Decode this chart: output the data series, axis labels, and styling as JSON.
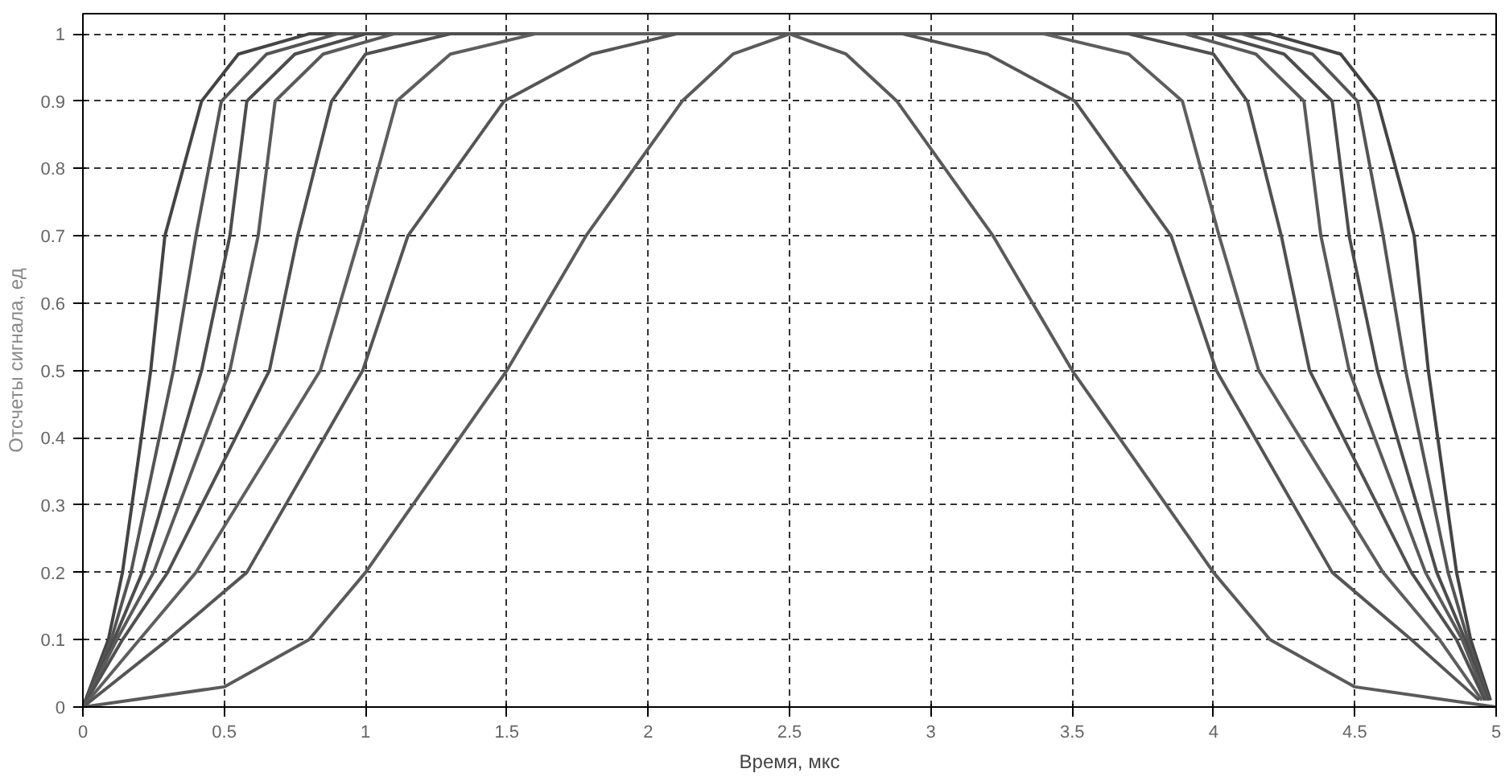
{
  "chart_data": {
    "type": "line",
    "xlabel": "Время, мкс",
    "ylabel": "Отсчеты сигнала, ед",
    "xlim": [
      0,
      5
    ],
    "ylim": [
      0,
      1.03
    ],
    "xticks": [
      0,
      0.5,
      1,
      1.5,
      2,
      2.5,
      3,
      3.5,
      4,
      4.5,
      5
    ],
    "yticks": [
      0,
      0.1,
      0.2,
      0.3,
      0.4,
      0.5,
      0.6,
      0.7,
      0.8,
      0.9,
      1
    ],
    "grid": true,
    "line_style": "solid",
    "series": [
      {
        "color": "#444444",
        "x": [
          0,
          0.09,
          0.14,
          0.24,
          0.29,
          0.42,
          0.55,
          0.8,
          4.2,
          4.45,
          4.58,
          4.71,
          4.76,
          4.86,
          4.91,
          4.98
        ],
        "values": [
          0,
          0.1,
          0.2,
          0.5,
          0.7,
          0.9,
          0.97,
          1,
          1,
          0.97,
          0.9,
          0.7,
          0.5,
          0.2,
          0.1,
          0.01
        ]
      },
      {
        "color": "#555555",
        "x": [
          0,
          0.1,
          0.17,
          0.32,
          0.4,
          0.49,
          0.65,
          0.9,
          4.1,
          4.35,
          4.51,
          4.6,
          4.68,
          4.83,
          4.9,
          4.975
        ],
        "values": [
          0,
          0.1,
          0.2,
          0.5,
          0.7,
          0.9,
          0.97,
          1,
          1,
          0.97,
          0.9,
          0.7,
          0.5,
          0.2,
          0.1,
          0.01
        ]
      },
      {
        "color": "#4c4c4c",
        "x": [
          0,
          0.11,
          0.21,
          0.42,
          0.52,
          0.58,
          0.75,
          1.0,
          4.0,
          4.25,
          4.42,
          4.48,
          4.58,
          4.79,
          4.89,
          4.97
        ],
        "values": [
          0,
          0.1,
          0.2,
          0.5,
          0.7,
          0.9,
          0.97,
          1,
          1,
          0.97,
          0.9,
          0.7,
          0.5,
          0.2,
          0.1,
          0.01
        ]
      },
      {
        "color": "#5a5a5a",
        "x": [
          0,
          0.12,
          0.25,
          0.52,
          0.62,
          0.68,
          0.85,
          1.1,
          3.9,
          4.15,
          4.32,
          4.38,
          4.48,
          4.75,
          4.88,
          4.965
        ],
        "values": [
          0,
          0.1,
          0.2,
          0.5,
          0.7,
          0.9,
          0.97,
          1,
          1,
          0.97,
          0.9,
          0.7,
          0.5,
          0.2,
          0.1,
          0.01
        ]
      },
      {
        "color": "#505050",
        "x": [
          0,
          0.14,
          0.3,
          0.66,
          0.76,
          0.88,
          1.0,
          1.3,
          3.7,
          4.0,
          4.12,
          4.24,
          4.34,
          4.7,
          4.86,
          4.96
        ],
        "values": [
          0,
          0.1,
          0.2,
          0.5,
          0.7,
          0.9,
          0.97,
          1,
          1,
          0.97,
          0.9,
          0.7,
          0.5,
          0.2,
          0.1,
          0.01
        ]
      },
      {
        "color": "#5e5e5e",
        "x": [
          0,
          0.2,
          0.4,
          0.84,
          0.98,
          1.11,
          1.3,
          1.6,
          3.4,
          3.7,
          3.89,
          4.02,
          4.16,
          4.6,
          4.8,
          4.95
        ],
        "values": [
          0,
          0.1,
          0.2,
          0.5,
          0.7,
          0.9,
          0.97,
          1,
          1,
          0.97,
          0.9,
          0.7,
          0.5,
          0.2,
          0.1,
          0.01
        ]
      },
      {
        "color": "#555555",
        "x": [
          0,
          0.3,
          0.58,
          0.99,
          1.15,
          1.49,
          1.8,
          2.1,
          2.9,
          3.2,
          3.51,
          3.85,
          4.01,
          4.42,
          4.7,
          4.94
        ],
        "values": [
          0,
          0.1,
          0.2,
          0.5,
          0.7,
          0.9,
          0.97,
          1,
          1,
          0.97,
          0.9,
          0.7,
          0.5,
          0.2,
          0.1,
          0.01
        ]
      },
      {
        "color": "#5a5a5a",
        "x": [
          0,
          0.5,
          0.8,
          1.0,
          1.5,
          1.78,
          2.12,
          2.3,
          2.5,
          2.7,
          2.88,
          3.22,
          3.5,
          4.0,
          4.2,
          4.5,
          5
        ],
        "values": [
          0,
          0.03,
          0.1,
          0.2,
          0.5,
          0.7,
          0.9,
          0.97,
          1,
          0.97,
          0.9,
          0.7,
          0.5,
          0.2,
          0.1,
          0.03,
          0
        ]
      }
    ]
  }
}
